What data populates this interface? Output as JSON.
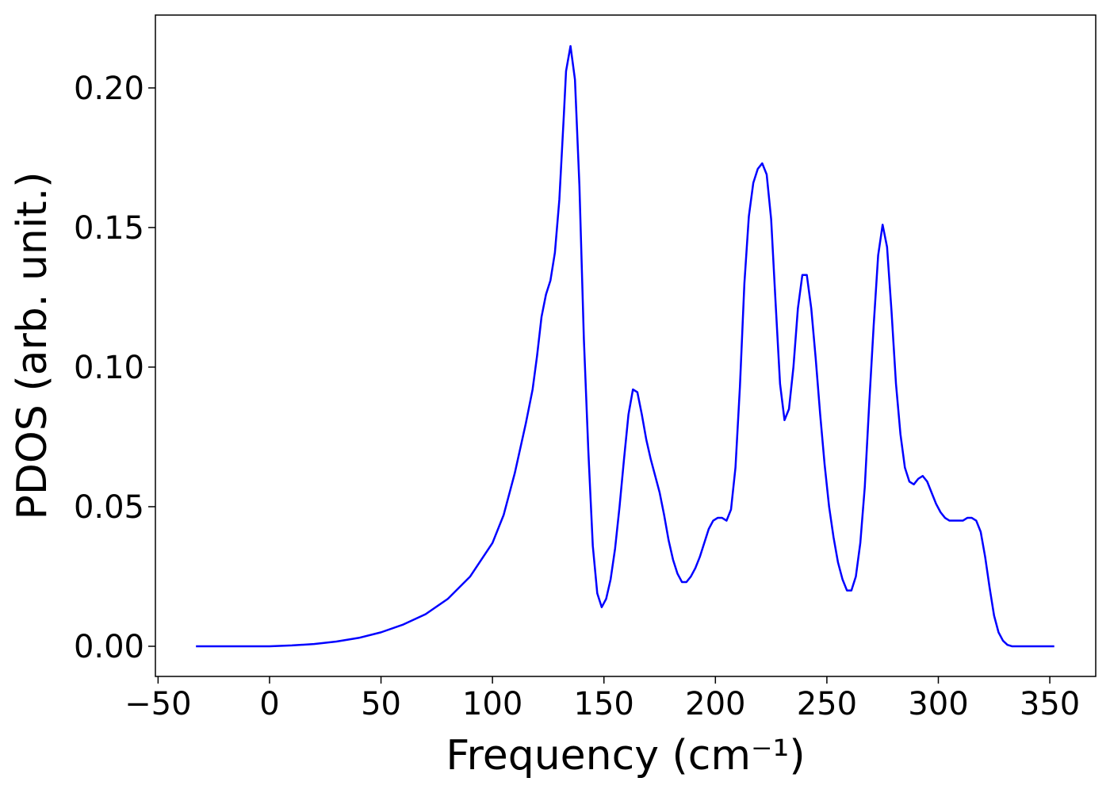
{
  "chart_data": {
    "type": "line",
    "xlabel": "Frequency (cm⁻¹)",
    "ylabel": "PDOS (arb. unit.)",
    "xlim": [
      -51.2,
      370.6
    ],
    "ylim": [
      -0.0108,
      0.2261
    ],
    "xticks": [
      {
        "value": -50,
        "label": "−50"
      },
      0,
      50,
      100,
      150,
      200,
      250,
      300,
      350
    ],
    "yticks": [
      {
        "value": 0,
        "label": "0.00"
      },
      {
        "value": 0.05,
        "label": "0.05"
      },
      {
        "value": 0.1,
        "label": "0.10"
      },
      {
        "value": 0.15,
        "label": "0.15"
      },
      {
        "value": 0.2,
        "label": "0.20"
      }
    ],
    "grid": false,
    "series": [
      {
        "color": "#0000ff",
        "x": [
          -33,
          0,
          10,
          20,
          30,
          40,
          50,
          60,
          70,
          80,
          90,
          100,
          105,
          110,
          115,
          118,
          120,
          122,
          124,
          126,
          128,
          130,
          132,
          133,
          135,
          137,
          139,
          141,
          143,
          145,
          147,
          149,
          151,
          153,
          155,
          157,
          159,
          161,
          163,
          165,
          167,
          169,
          171,
          173,
          175,
          177,
          179,
          181,
          183,
          185,
          187,
          189,
          191,
          193,
          195,
          197,
          199,
          201,
          203,
          205,
          207,
          209,
          211,
          213,
          215,
          217,
          219,
          221,
          223,
          225,
          227,
          229,
          231,
          233,
          235,
          237,
          239,
          241,
          243,
          245,
          247,
          249,
          251,
          253,
          255,
          257,
          259,
          261,
          263,
          265,
          267,
          269,
          271,
          273,
          275,
          277,
          279,
          281,
          283,
          285,
          287,
          289,
          291,
          293,
          295,
          297,
          299,
          301,
          303,
          305,
          307,
          309,
          311,
          313,
          315,
          317,
          319,
          321,
          323,
          325,
          327,
          329,
          331,
          333,
          340,
          352
        ],
        "values": [
          0,
          0,
          0.0003,
          0.0008,
          0.0017,
          0.003,
          0.005,
          0.0078,
          0.0115,
          0.017,
          0.025,
          0.037,
          0.047,
          0.062,
          0.08,
          0.092,
          0.104,
          0.118,
          0.126,
          0.131,
          0.141,
          0.16,
          0.19,
          0.206,
          0.215,
          0.203,
          0.165,
          0.11,
          0.07,
          0.036,
          0.019,
          0.014,
          0.017,
          0.024,
          0.035,
          0.05,
          0.067,
          0.083,
          0.092,
          0.091,
          0.083,
          0.074,
          0.067,
          0.061,
          0.055,
          0.047,
          0.038,
          0.031,
          0.026,
          0.023,
          0.023,
          0.025,
          0.028,
          0.032,
          0.037,
          0.042,
          0.045,
          0.046,
          0.046,
          0.045,
          0.049,
          0.064,
          0.093,
          0.13,
          0.154,
          0.166,
          0.171,
          0.173,
          0.169,
          0.153,
          0.123,
          0.094,
          0.081,
          0.085,
          0.1,
          0.121,
          0.133,
          0.133,
          0.121,
          0.103,
          0.083,
          0.065,
          0.05,
          0.039,
          0.03,
          0.024,
          0.02,
          0.02,
          0.025,
          0.037,
          0.057,
          0.087,
          0.115,
          0.14,
          0.151,
          0.143,
          0.12,
          0.094,
          0.076,
          0.064,
          0.059,
          0.058,
          0.06,
          0.061,
          0.059,
          0.055,
          0.051,
          0.048,
          0.046,
          0.045,
          0.045,
          0.045,
          0.045,
          0.046,
          0.046,
          0.045,
          0.041,
          0.032,
          0.021,
          0.011,
          0.005,
          0.002,
          0.0005,
          0,
          0,
          0
        ]
      }
    ]
  }
}
